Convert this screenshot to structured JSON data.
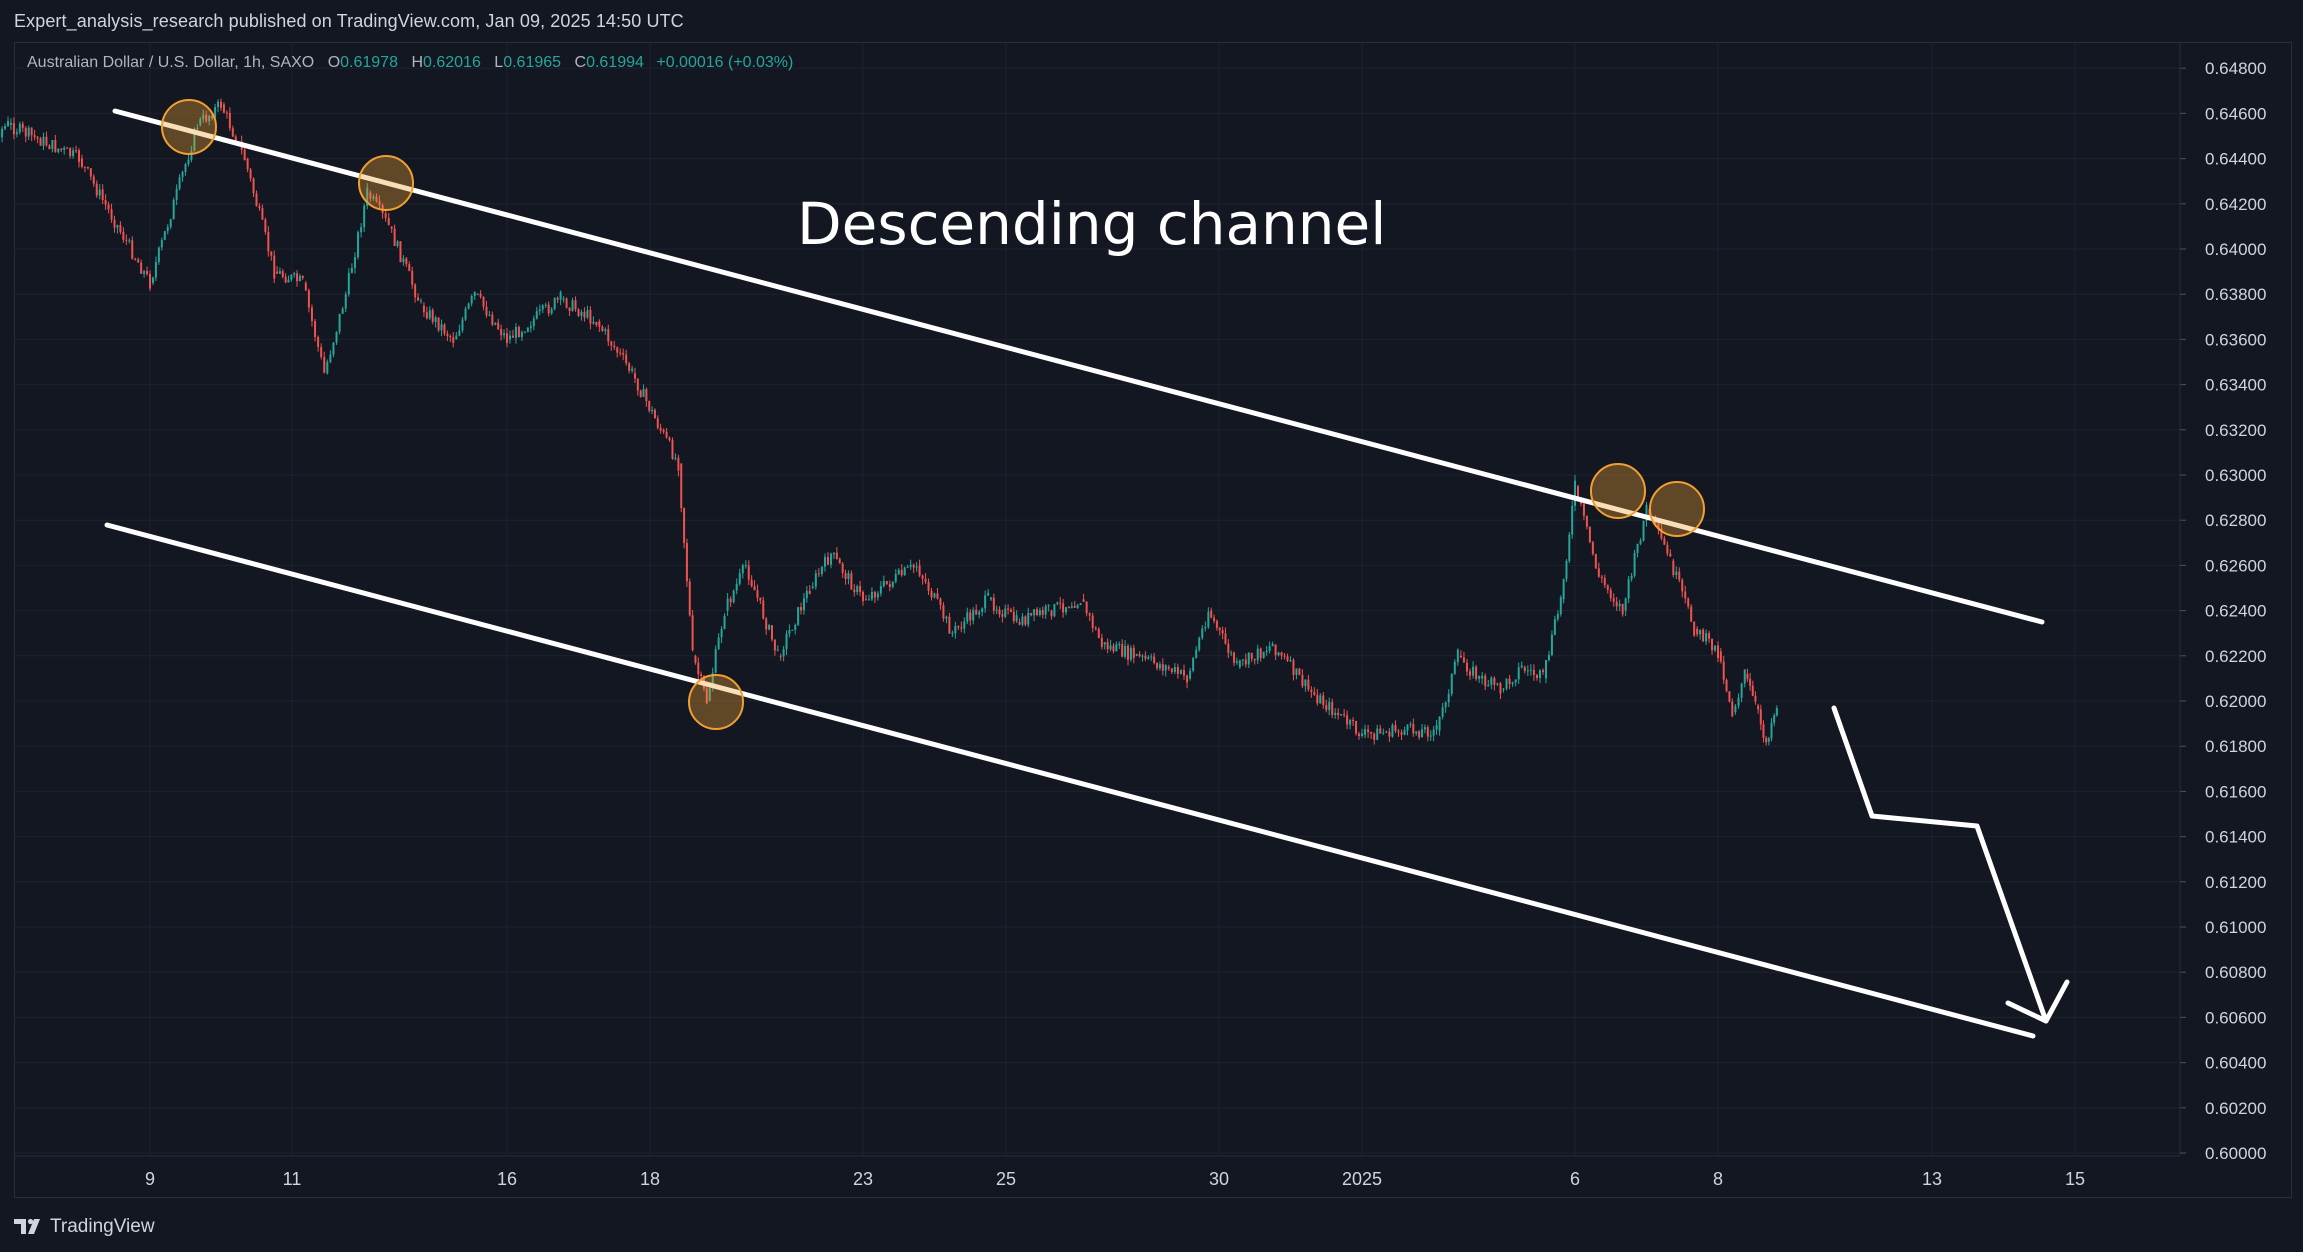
{
  "header": {
    "published_text": "Expert_analysis_research published on TradingView.com, Jan 09, 2025 14:50 UTC"
  },
  "legend": {
    "symbol": "Australian Dollar / U.S. Dollar, 1h, SAXO",
    "open_label": "O",
    "open": "0.61978",
    "high_label": "H",
    "high": "0.62016",
    "low_label": "L",
    "low": "0.61965",
    "close_label": "C",
    "close": "0.61994",
    "change": "+0.00016 (+0.03%)"
  },
  "annotation": {
    "text": "Descending channel"
  },
  "footer": {
    "brand": "TradingView"
  },
  "colors": {
    "background": "#131722",
    "up": "#26a69a",
    "down": "#ef5350",
    "text": "#d1d4dc",
    "grid": "#1e222d",
    "highlight": "#f0a030"
  },
  "chart_data": {
    "type": "line",
    "title": "Australian Dollar / U.S. Dollar, 1h, SAXO",
    "xlabel": "",
    "ylabel": "",
    "x_ticks": [
      "9",
      "11",
      "16",
      "18",
      "23",
      "25",
      "30",
      "2025",
      "6",
      "8",
      "13",
      "15"
    ],
    "y_ticks": [
      "0.64800",
      "0.64600",
      "0.64400",
      "0.64200",
      "0.64000",
      "0.63800",
      "0.63600",
      "0.63400",
      "0.63200",
      "0.63000",
      "0.62800",
      "0.62600",
      "0.62400",
      "0.62200",
      "0.62000",
      "0.61800",
      "0.61600",
      "0.61400",
      "0.61200",
      "0.61000",
      "0.60800",
      "0.60600",
      "0.60400",
      "0.60200",
      "0.60000"
    ],
    "ylim": [
      0.6,
      0.649
    ],
    "grid": true,
    "price_path": [
      {
        "x": "Dec 6",
        "y": 0.6433
      },
      {
        "x": "Dec 7",
        "y": 0.6455
      },
      {
        "x": "Dec 8",
        "y": 0.644
      },
      {
        "x": "Dec 9",
        "y": 0.6385
      },
      {
        "x": "Dec 10",
        "y": 0.6455
      },
      {
        "x": "Dec 10",
        "y": 0.6464
      },
      {
        "x": "Dec 10",
        "y": 0.644
      },
      {
        "x": "Dec 11",
        "y": 0.639
      },
      {
        "x": "Dec 11",
        "y": 0.6385
      },
      {
        "x": "Dec 12",
        "y": 0.6345
      },
      {
        "x": "Dec 12",
        "y": 0.638
      },
      {
        "x": "Dec 13",
        "y": 0.6425
      },
      {
        "x": "Dec 13",
        "y": 0.641
      },
      {
        "x": "Dec 14",
        "y": 0.6375
      },
      {
        "x": "Dec 15",
        "y": 0.636
      },
      {
        "x": "Dec 15",
        "y": 0.638
      },
      {
        "x": "Dec 16",
        "y": 0.636
      },
      {
        "x": "Dec 17",
        "y": 0.6378
      },
      {
        "x": "Dec 17",
        "y": 0.6368
      },
      {
        "x": "Dec 18",
        "y": 0.6345
      },
      {
        "x": "Dec 18",
        "y": 0.632
      },
      {
        "x": "Dec 19",
        "y": 0.6305
      },
      {
        "x": "Dec 19",
        "y": 0.622
      },
      {
        "x": "Dec 19",
        "y": 0.62
      },
      {
        "x": "Dec 20",
        "y": 0.624
      },
      {
        "x": "Dec 20",
        "y": 0.626
      },
      {
        "x": "Dec 21",
        "y": 0.622
      },
      {
        "x": "Dec 22",
        "y": 0.625
      },
      {
        "x": "Dec 22",
        "y": 0.6265
      },
      {
        "x": "Dec 23",
        "y": 0.6245
      },
      {
        "x": "Dec 24",
        "y": 0.626
      },
      {
        "x": "Dec 24",
        "y": 0.623
      },
      {
        "x": "Dec 25",
        "y": 0.6245
      },
      {
        "x": "Dec 25",
        "y": 0.6235
      },
      {
        "x": "Dec 26",
        "y": 0.624
      },
      {
        "x": "Dec 27",
        "y": 0.6245
      },
      {
        "x": "Dec 27",
        "y": 0.6225
      },
      {
        "x": "Dec 28",
        "y": 0.622
      },
      {
        "x": "Dec 29",
        "y": 0.6215
      },
      {
        "x": "Dec 29",
        "y": 0.621
      },
      {
        "x": "Dec 30",
        "y": 0.624
      },
      {
        "x": "Dec 30",
        "y": 0.6215
      },
      {
        "x": "Dec 31",
        "y": 0.6225
      },
      {
        "x": "Dec 31",
        "y": 0.6205
      },
      {
        "x": "Jan 1",
        "y": 0.6185
      },
      {
        "x": "Jan 2",
        "y": 0.6187
      },
      {
        "x": "Jan 3",
        "y": 0.6187
      },
      {
        "x": "Jan 3",
        "y": 0.622
      },
      {
        "x": "Jan 4",
        "y": 0.621
      },
      {
        "x": "Jan 4",
        "y": 0.6205
      },
      {
        "x": "Jan 5",
        "y": 0.6215
      },
      {
        "x": "Jan 5",
        "y": 0.621
      },
      {
        "x": "Jan 6",
        "y": 0.6245
      },
      {
        "x": "Jan 6",
        "y": 0.6295
      },
      {
        "x": "Jan 6",
        "y": 0.6255
      },
      {
        "x": "Jan 7",
        "y": 0.624
      },
      {
        "x": "Jan 7",
        "y": 0.6285
      },
      {
        "x": "Jan 7",
        "y": 0.6262
      },
      {
        "x": "Jan 8",
        "y": 0.6232
      },
      {
        "x": "Jan 8",
        "y": 0.6222
      },
      {
        "x": "Jan 8",
        "y": 0.6195
      },
      {
        "x": "Jan 9",
        "y": 0.6212
      },
      {
        "x": "Jan 9",
        "y": 0.6198
      },
      {
        "x": "Jan 9",
        "y": 0.6182
      },
      {
        "x": "Jan 9",
        "y": 0.6199
      }
    ],
    "drawings": {
      "upper_channel_line": [
        {
          "x": "Dec 8",
          "y": 0.6463
        },
        {
          "x": "Jan 14",
          "y": 0.6238
        }
      ],
      "lower_channel_line": [
        {
          "x": "Dec 8",
          "y": 0.628
        },
        {
          "x": "Jan 14",
          "y": 0.6053
        }
      ],
      "projection_arrow": [
        {
          "x": "Jan 9",
          "y": 0.6198
        },
        {
          "x": "Jan 10",
          "y": 0.615
        },
        {
          "x": "Jan 13",
          "y": 0.6146
        },
        {
          "x": "Jan 14",
          "y": 0.6058
        }
      ],
      "touch_points": [
        {
          "x": "Dec 10",
          "y": 0.6458
        },
        {
          "x": "Dec 13",
          "y": 0.6431
        },
        {
          "x": "Dec 19",
          "y": 0.6201
        },
        {
          "x": "Jan 6",
          "y": 0.6294
        },
        {
          "x": "Jan 7",
          "y": 0.6287
        }
      ]
    }
  }
}
